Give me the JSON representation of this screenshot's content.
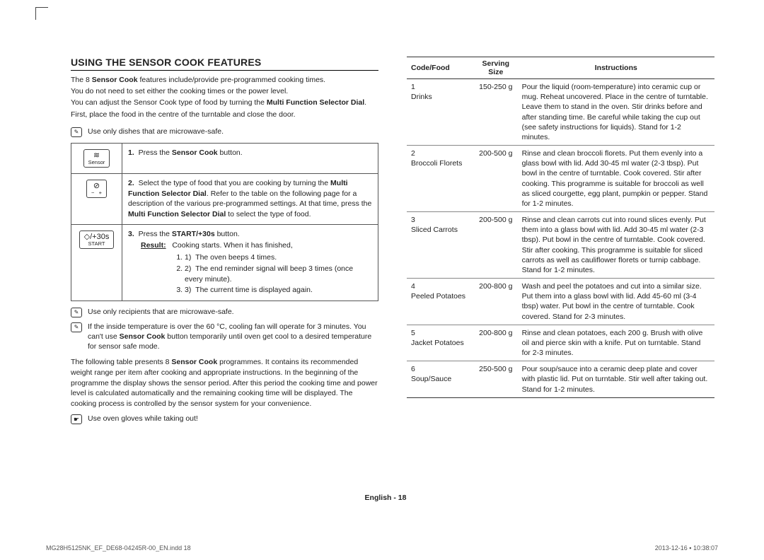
{
  "heading": "USING THE SENSOR COOK FEATURES",
  "intro_lines": [
    "The 8 <b>Sensor Cook</b> features include/provide pre-programmed cooking times.",
    "You do not need to set either the cooking times or the power level.",
    "You can adjust the Sensor Cook type of food by turning the <b>Multi Function Selector Dial</b>.",
    "First, place the food in the centre of the turntable and close the door."
  ],
  "note1": "Use only dishes that are microwave-safe.",
  "steps": [
    {
      "icon_symbol": "≋",
      "icon_label": "Sensor",
      "html": "<b>1.</b>&nbsp; Press the <b>Sensor Cook</b> button."
    },
    {
      "icon_symbol": "⊘",
      "icon_label": "− &nbsp; +",
      "html": "<b>2.</b>&nbsp; Select the type of food that you are cooking by turning the <b>Multi Function Selector Dial</b>. Refer to the table on the following page for a description of the various pre-programmed settings. At that time, press the <b>Multi Function Selector Dial</b> to select the type of food."
    },
    {
      "icon_symbol": "◇/+30s",
      "icon_label": "START",
      "html": "<b>3.</b>&nbsp; Press the <b>START/+30s</b> button.",
      "result_label": "Result:",
      "result_text": "Cooking starts. When it has finished,",
      "result_items": [
        "The oven beeps 4 times.",
        "The end reminder signal will beep 3 times (once every minute).",
        "The current time is displayed again."
      ]
    }
  ],
  "note2": "Use only recipients that are microwave-safe.",
  "note3": "If the inside temperature is over the 60 °C, cooling fan will operate for 3 minutes. You can't use <b>Sensor Cook</b> button temporarily until oven get cool to a desired temperature for sensor safe mode.",
  "paragraph": "The following table presents 8 <b>Sensor Cook</b> programmes. It contains its recommended weight range per item after cooking and appropriate instructions. In the beginning of the programme the display shows the sensor period. After this period the cooking time and power level is calculated automatically and the remaining cooking time will be displayed. The cooking process is controlled by the sensor system for your convenience.",
  "glove_note": "Use oven gloves while taking out!",
  "table_headers": {
    "c1": "Code/Food",
    "c2": "Serving Size",
    "c3": "Instructions"
  },
  "foods": [
    {
      "code": "1",
      "name": "Drinks",
      "size": "150-250 g",
      "instr": "Pour the liquid (room-temperature) into ceramic cup or mug. Reheat uncovered. Place in the centre of turntable. Leave them to stand in the oven. Stir drinks before and after standing time. Be careful while taking the cup out (see safety instructions for liquids). Stand for 1-2 minutes."
    },
    {
      "code": "2",
      "name": "Broccoli Florets",
      "size": "200-500 g",
      "instr": "Rinse and clean broccoli florets. Put them evenly into a glass bowl with lid. Add 30-45 ml water (2-3 tbsp). Put bowl in the centre of turntable. Cook covered. Stir after cooking. This programme is suitable for broccoli as well as sliced courgette, egg plant, pumpkin or pepper. Stand for 1-2 minutes."
    },
    {
      "code": "3",
      "name": "Sliced Carrots",
      "size": "200-500 g",
      "instr": "Rinse and clean carrots cut into round slices evenly. Put them into a glass bowl with lid. Add 30-45 ml water (2-3 tbsp). Put bowl in the centre of turntable. Cook covered. Stir after cooking. This programme is suitable for sliced carrots as well as cauliflower florets or turnip cabbage. Stand for 1-2 minutes."
    },
    {
      "code": "4",
      "name": "Peeled Potatoes",
      "size": "200-800 g",
      "instr": "Wash and peel the potatoes and cut into a similar size. Put them into a glass bowl with lid. Add 45-60 ml (3-4 tbsp) water. Put bowl in the centre of turntable. Cook covered. Stand for 2-3 minutes."
    },
    {
      "code": "5",
      "name": "Jacket Potatoes",
      "size": "200-800 g",
      "instr": "Rinse and clean potatoes, each 200 g. Brush with olive oil and pierce skin with a knife. Put on turntable. Stand for 2-3 minutes."
    },
    {
      "code": "6",
      "name": "Soup/Sauce",
      "size": "250-500 g",
      "instr": "Pour soup/sauce into a ceramic deep plate and cover with plastic lid. Put on turntable. Stir well after taking out. Stand for 1-2 minutes."
    }
  ],
  "footer": "English - 18",
  "print_left": "MG28H5125NK_EF_DE68-04245R-00_EN.indd   18",
  "print_right": "2013-12-16   ▪ 10:38:07"
}
